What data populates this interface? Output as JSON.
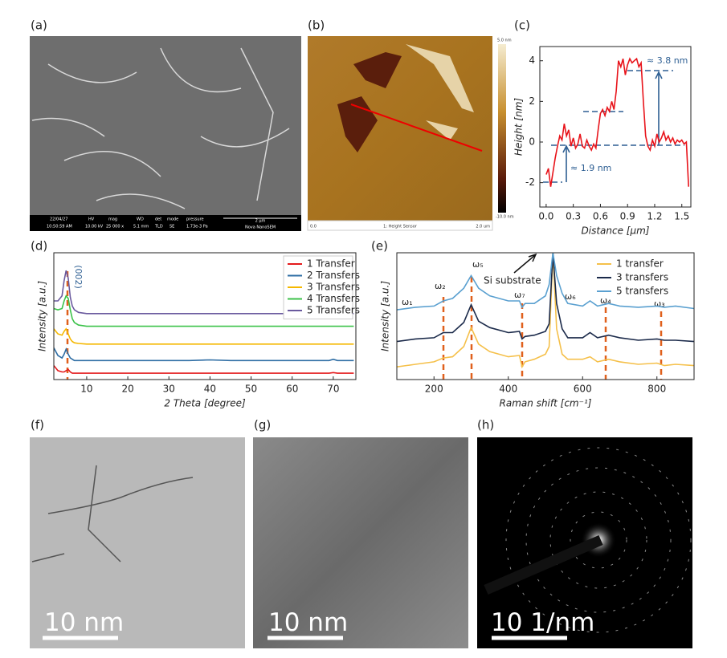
{
  "panels": [
    {
      "label": "(a)",
      "info": [
        "22/04/27",
        "10:50:59 AM",
        "HV",
        "10.00 kV",
        "mag",
        "25 000 x",
        "WD",
        "5.1 mm",
        "det",
        "TLD",
        "mode",
        "SE",
        "pressure",
        "1.73e-3 Pa",
        "2 μm",
        "Nova NanoSEM"
      ]
    },
    {
      "label": "(b)",
      "info": [
        "5.0 nm",
        "-10.0 nm",
        "0.0",
        "1: Height Sensor",
        "2.0 um"
      ]
    },
    {
      "label": "(c)",
      "annotations": [
        "≈ 3.8 nm",
        "≈ 1.9 nm"
      ]
    },
    {
      "label": "(d)",
      "annotations": [
        "(002)"
      ]
    },
    {
      "label": "(e)",
      "annotations": [
        "ω₁",
        "ω₂",
        "ω₅",
        "ω₇",
        "ω₆",
        "ω₄",
        "ω₃",
        "Si substrate"
      ]
    },
    {
      "label": "(f)",
      "scale_bar": "10 nm"
    },
    {
      "label": "(g)",
      "scale_bar": "10 nm"
    },
    {
      "label": "(h)",
      "scale_bar": "10 1/nm"
    }
  ],
  "chart_data": [
    {
      "type": "line",
      "xlabel": "Distance [μm]",
      "ylabel": "Height [nm]",
      "x": [
        0,
        0.025,
        0.05,
        0.075,
        0.1,
        0.125,
        0.15,
        0.175,
        0.2,
        0.225,
        0.25,
        0.275,
        0.3,
        0.325,
        0.35,
        0.375,
        0.4,
        0.425,
        0.45,
        0.475,
        0.5,
        0.525,
        0.55,
        0.575,
        0.6,
        0.625,
        0.65,
        0.675,
        0.7,
        0.725,
        0.75,
        0.775,
        0.8,
        0.825,
        0.85,
        0.875,
        0.9,
        0.925,
        0.95,
        0.975,
        1.0,
        1.025,
        1.05,
        1.075,
        1.1,
        1.125,
        1.15,
        1.175,
        1.2,
        1.225,
        1.25,
        1.275,
        1.3,
        1.325,
        1.35,
        1.375,
        1.4,
        1.425,
        1.45,
        1.475,
        1.5,
        1.525,
        1.55,
        1.575
      ],
      "series": [
        {
          "color": "#e8141b",
          "values": [
            -1.6,
            -1.3,
            -2.2,
            -1.5,
            -0.8,
            -0.2,
            0.3,
            0.1,
            0.9,
            0.3,
            0.6,
            -0.2,
            0.2,
            -0.3,
            -0.1,
            0.4,
            -0.2,
            -0.3,
            0.1,
            -0.2,
            -0.4,
            -0.1,
            -0.3,
            0.6,
            1.4,
            1.6,
            1.3,
            1.7,
            1.5,
            2.0,
            1.6,
            2.5,
            4.0,
            3.7,
            4.1,
            3.3,
            3.8,
            4.1,
            3.9,
            4.0,
            4.1,
            3.7,
            3.9,
            2.0,
            0.3,
            -0.2,
            -0.4,
            0.1,
            -0.2,
            0.4,
            0.0,
            0.2,
            0.5,
            0.1,
            0.3,
            0.0,
            0.2,
            -0.1,
            0.1,
            0.0,
            0.1,
            -0.1,
            0.0,
            -2.2
          ]
        }
      ],
      "xlim": [
        -0.07,
        1.6
      ],
      "xticks": [
        {
          "value": 0,
          "label": "0.0"
        },
        0.3,
        0.6,
        0.9,
        1.2,
        1.5
      ],
      "ylim": [
        -3.2,
        4.7
      ],
      "yticks": [
        -2,
        0,
        2,
        4
      ]
    },
    {
      "type": "line",
      "xlabel": "2 Theta [degree]",
      "ylabel": "Intensity [a.u.]",
      "legend": "upper right",
      "x": [
        2,
        3,
        4,
        4.5,
        5,
        5.5,
        6,
        6.5,
        7,
        8,
        10,
        15,
        20,
        25,
        30,
        35,
        40,
        45,
        50,
        55,
        60,
        65,
        69,
        70,
        71,
        75
      ],
      "series": [
        {
          "name": "1 Transfer",
          "color": "#e41a1c",
          "values": [
            11,
            7,
            6,
            6,
            7,
            8,
            6,
            5,
            5,
            5,
            5,
            5,
            5,
            5,
            5,
            5,
            5,
            5,
            5,
            5,
            5,
            5,
            5,
            5.5,
            5,
            5
          ]
        },
        {
          "name": "2 Transfers",
          "color": "#2e6da4",
          "values": [
            25,
            19,
            17,
            20,
            24,
            20,
            17,
            16,
            15,
            15,
            15,
            15,
            15,
            15,
            15,
            15,
            15.5,
            15,
            15,
            15,
            15,
            15,
            15,
            16,
            15,
            15
          ]
        },
        {
          "name": "3 Transfers",
          "color": "#f5b800",
          "values": [
            40,
            36,
            35,
            38,
            40,
            36,
            32,
            30,
            29,
            28.5,
            28,
            28,
            28,
            28,
            28,
            28,
            28,
            28,
            28,
            28,
            28,
            28,
            28,
            28,
            28,
            28
          ]
        },
        {
          "name": "4 Transfers",
          "color": "#3cc24a",
          "values": [
            56,
            55,
            56,
            62,
            66,
            64,
            55,
            48,
            45,
            43,
            42,
            42,
            42,
            42,
            42,
            42,
            42,
            42,
            42,
            42,
            42,
            42,
            42,
            42,
            42,
            42
          ]
        },
        {
          "name": "5 Transfers",
          "color": "#6a5a9e",
          "values": [
            62,
            62,
            66,
            78,
            86,
            80,
            65,
            58,
            55,
            53,
            52,
            52,
            52,
            52,
            52,
            52,
            52,
            52,
            52,
            52,
            52,
            52,
            52,
            53.5,
            52,
            52
          ]
        }
      ],
      "xlim": [
        2,
        75.5
      ],
      "xticks": [
        10,
        20,
        30,
        40,
        50,
        60,
        70
      ],
      "ylim": [
        0,
        100
      ]
    },
    {
      "type": "line",
      "xlabel": "Raman shift [cm⁻¹]",
      "ylabel": "Intensity [a.u.]",
      "legend": "upper right",
      "x": [
        100,
        150,
        200,
        225,
        250,
        280,
        300,
        320,
        350,
        400,
        430,
        437,
        445,
        470,
        500,
        510,
        520,
        530,
        545,
        560,
        600,
        620,
        640,
        670,
        700,
        750,
        800,
        820,
        850,
        900
      ],
      "series": [
        {
          "name": "1 transfer",
          "color": "#f5c04a",
          "values": [
            10,
            12,
            14,
            17,
            18,
            26,
            41,
            28,
            22,
            18,
            19,
            10,
            14,
            16,
            20,
            26,
            100,
            40,
            20,
            16,
            16,
            18,
            14,
            16,
            14,
            12,
            13,
            11,
            12,
            11
          ]
        },
        {
          "name": "3 transfers",
          "color": "#1b2a4a",
          "values": [
            30,
            32,
            33,
            37,
            37,
            45,
            59,
            46,
            41,
            37,
            38,
            32,
            34,
            35,
            38,
            44,
            100,
            60,
            40,
            33,
            33,
            37,
            33,
            35,
            33,
            31,
            32,
            31,
            31,
            30
          ]
        },
        {
          "name": "5 transfers",
          "color": "#5aa0d0",
          "values": [
            55,
            57,
            58,
            62,
            64,
            72,
            82,
            72,
            66,
            62,
            62,
            57,
            60,
            60,
            66,
            75,
            100,
            82,
            68,
            60,
            58,
            62,
            58,
            60,
            58,
            57,
            58,
            57,
            58,
            56
          ]
        }
      ],
      "xlim": [
        100,
        900
      ],
      "xticks": [
        200,
        400,
        600,
        800
      ],
      "ylim": [
        0,
        100
      ]
    }
  ]
}
